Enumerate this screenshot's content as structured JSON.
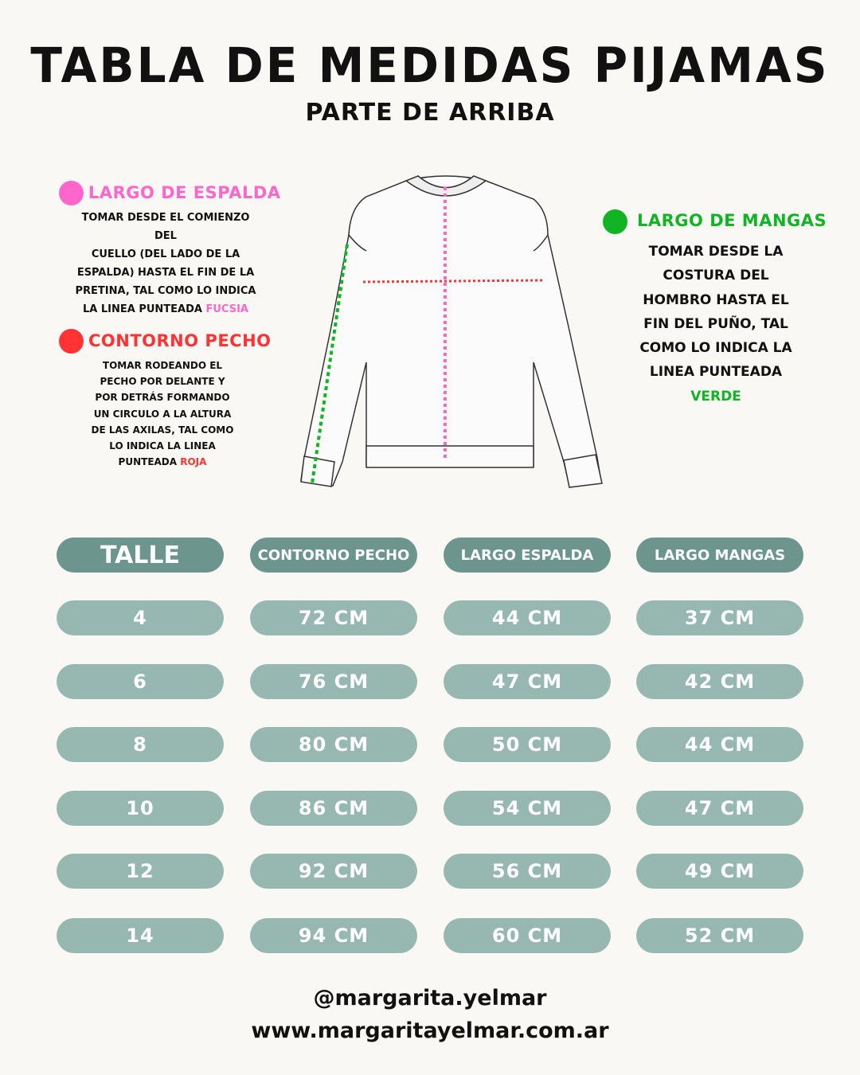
{
  "title": "TABLA DE MEDIDAS PIJAMAS",
  "subtitle": "PARTE DE ARRIBA",
  "colors": {
    "fucsia": "#ff66cc",
    "rojo": "#ff3333",
    "verde": "#11b523",
    "header": "#6b958d",
    "cell": "#97b8b1",
    "background": "#f9f8f4"
  },
  "sections": {
    "espalda": {
      "title": "LARGO DE ESPALDA",
      "lines": [
        "TOMAR DESDE EL COMIENZO DEL",
        "CUELLO (DEL LADO DE LA",
        "ESPALDA) HASTA EL FIN DE LA",
        "PRETINA, TAL COMO LO INDICA",
        "LA LINEA PUNTEADA"
      ],
      "highlight": "FUCSIA"
    },
    "pecho": {
      "title": "CONTORNO PECHO",
      "lines": [
        "TOMAR RODEANDO EL",
        "PECHO POR DELANTE Y",
        "POR DETRÁS FORMANDO",
        "UN CIRCULO A LA ALTURA",
        "DE LAS AXILAS, TAL COMO",
        "LO INDICA LA LINEA",
        "PUNTEADA"
      ],
      "highlight": "ROJA"
    },
    "mangas": {
      "title": "LARGO DE MANGAS",
      "lines": [
        "TOMAR DESDE LA",
        "COSTURA DEL",
        "HOMBRO HASTA EL",
        "FIN DEL PUÑO, TAL",
        "COMO LO INDICA LA",
        "LINEA PUNTEADA"
      ],
      "highlight": "VERDE"
    }
  },
  "table": {
    "headers": [
      "TALLE",
      "CONTORNO PECHO",
      "LARGO ESPALDA",
      "LARGO MANGAS"
    ],
    "rows": [
      [
        "4",
        "72 CM",
        "44 CM",
        "37 CM"
      ],
      [
        "6",
        "76 CM",
        "47 CM",
        "42 CM"
      ],
      [
        "8",
        "80 CM",
        "50 CM",
        "44 CM"
      ],
      [
        "10",
        "86 CM",
        "54 CM",
        "47 CM"
      ],
      [
        "12",
        "92 CM",
        "56 CM",
        "49 CM"
      ],
      [
        "14",
        "94 CM",
        "60 CM",
        "52 CM"
      ]
    ]
  },
  "footer": {
    "instagram": "@margarita.yelmar",
    "website": "www.margaritayelmar.com.ar"
  }
}
